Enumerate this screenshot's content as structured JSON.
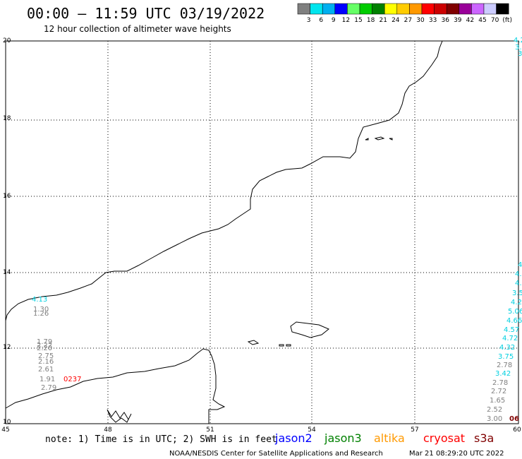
{
  "header": {
    "title": "00:00 – 11:59 UTC 03/19/2022",
    "subtitle": "12 hour collection of altimeter wave heights"
  },
  "colorscale": {
    "labels": [
      "3",
      "6",
      "9",
      "12",
      "15",
      "18",
      "21",
      "24",
      "27",
      "30",
      "33",
      "36",
      "39",
      "42",
      "45",
      "70",
      "(ft)"
    ],
    "colors": [
      "#7f7f7f",
      "#00e5ee",
      "#00b0f0",
      "#0000ff",
      "#66ff66",
      "#00cc00",
      "#008000",
      "#ffff00",
      "#ffcc00",
      "#ff9900",
      "#ff0000",
      "#cc0000",
      "#800000",
      "#990099",
      "#cc66ff",
      "#ccccff",
      "#000000"
    ]
  },
  "map": {
    "lon_ticks": [
      "45",
      "48",
      "51",
      "54",
      "57",
      "60"
    ],
    "lat_ticks": [
      "20",
      "18",
      "16",
      "14",
      "12",
      "10"
    ]
  },
  "wave_labels": [
    {
      "text": "4.13",
      "color": "#00d0e0"
    },
    {
      "text": "1.30",
      "color": "#808080"
    },
    {
      "text": "1.26",
      "color": "#808080"
    },
    {
      "text": "1.79",
      "color": "#808080"
    },
    {
      "text": "2.22",
      "color": "#808080"
    },
    {
      "text": "2.20",
      "color": "#808080"
    },
    {
      "text": "2.75",
      "color": "#808080"
    },
    {
      "text": "2.16",
      "color": "#808080"
    },
    {
      "text": "2.61",
      "color": "#808080"
    },
    {
      "text": "1.91",
      "color": "#808080"
    },
    {
      "text": "2.79",
      "color": "#808080"
    },
    {
      "text": "0237",
      "color": "#ff0000"
    },
    {
      "text": "4.2",
      "color": "#00d0e0"
    },
    {
      "text": "3.",
      "color": "#00d0e0"
    },
    {
      "text": "3.",
      "color": "#00d0e0"
    },
    {
      "text": "4",
      "color": "#00d0e0"
    },
    {
      "text": "4.",
      "color": "#00d0e0"
    },
    {
      "text": "4.",
      "color": "#00d0e0"
    },
    {
      "text": "3.5",
      "color": "#00d0e0"
    },
    {
      "text": "4.2",
      "color": "#00d0e0"
    },
    {
      "text": "5.06",
      "color": "#00d0e0"
    },
    {
      "text": "4.66",
      "color": "#00d0e0"
    },
    {
      "text": "4.57",
      "color": "#00d0e0"
    },
    {
      "text": "4.72",
      "color": "#00d0e0"
    },
    {
      "text": "4.32",
      "color": "#00d0e0"
    },
    {
      "text": "3.75",
      "color": "#00d0e0"
    },
    {
      "text": "2.78",
      "color": "#808080"
    },
    {
      "text": "3.42",
      "color": "#00d0e0"
    },
    {
      "text": "2.78",
      "color": "#808080"
    },
    {
      "text": "2.72",
      "color": "#808080"
    },
    {
      "text": "1.65",
      "color": "#808080"
    },
    {
      "text": "2.52",
      "color": "#808080"
    },
    {
      "text": "3.00",
      "color": "#808080"
    },
    {
      "text": "06",
      "color": "#800000"
    }
  ],
  "footer": {
    "note": "note: 1) Time is in UTC; 2) SWH is in feet",
    "satellites": [
      {
        "name": "jason2",
        "color": "#0000ff"
      },
      {
        "name": "jason3",
        "color": "#008000"
      },
      {
        "name": "altika",
        "color": "#ff9900"
      },
      {
        "name": "cryosat",
        "color": "#ff0000"
      },
      {
        "name": "s3a",
        "color": "#800000"
      }
    ],
    "credit": "NOAA/NESDIS Center for Satellite Applications and Research",
    "timestamp": "Mar 21 08:29:20 UTC 2022"
  }
}
